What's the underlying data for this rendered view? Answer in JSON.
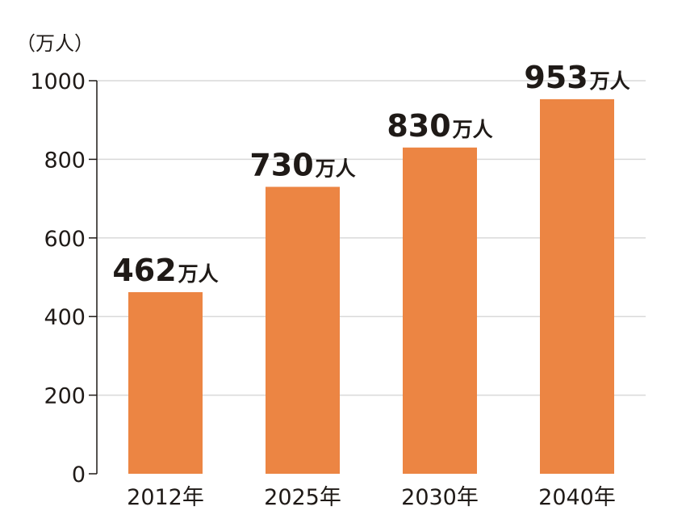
{
  "chart_data": {
    "type": "bar",
    "title": "",
    "xlabel": "",
    "ylabel": "",
    "y_unit_label": "（万人）",
    "categories": [
      "2012年",
      "2025年",
      "2030年",
      "2040年"
    ],
    "values": [
      462,
      730,
      830,
      953
    ],
    "data_label_unit": "万人",
    "ylim": [
      0,
      1000
    ],
    "yticks": [
      "0",
      "200",
      "400",
      "600",
      "800",
      "1000"
    ],
    "ytick_values": [
      0,
      200,
      400,
      600,
      800,
      1000
    ],
    "grid": true,
    "legend": "none",
    "bar_color": "#ec8543",
    "grid_color": "#d9d9d9",
    "axis_color": "#1f1a17"
  }
}
